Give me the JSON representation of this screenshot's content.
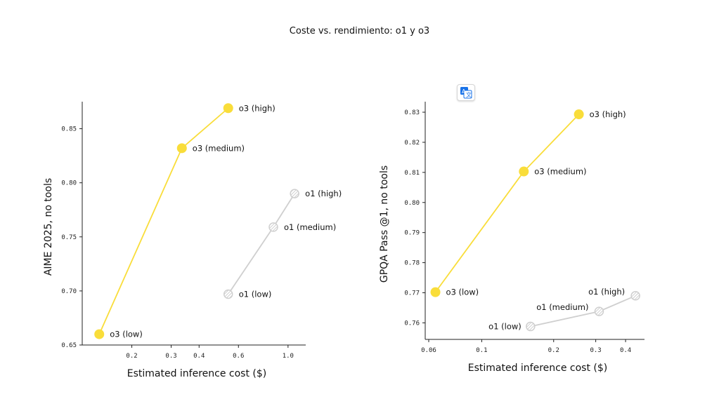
{
  "title": "Coste vs. rendimiento: o1 y o3",
  "colors": {
    "o3": "#f9dd3a",
    "o1": "#cfcfcf",
    "o1_hatch": "#bdbdbd"
  },
  "translate_icon": "translate-icon",
  "chart_data": [
    {
      "type": "scatter",
      "xlabel": "Estimated inference cost ($)",
      "ylabel": "AIME 2025, no tools",
      "xscale": "log",
      "xlim": [
        0.12,
        1.2
      ],
      "ylim": [
        0.65,
        0.875
      ],
      "xticks": [
        {
          "value": 0.2,
          "label": "0.2"
        },
        {
          "value": 0.3,
          "label": "0.3"
        },
        {
          "value": 0.4,
          "label": "0.4"
        },
        {
          "value": 0.6,
          "label": "0.6"
        },
        {
          "value": 1.0,
          "label": "1.0"
        }
      ],
      "yticks": [
        {
          "value": 0.65,
          "label": "0.65"
        },
        {
          "value": 0.7,
          "label": "0.70"
        },
        {
          "value": 0.75,
          "label": "0.75"
        },
        {
          "value": 0.8,
          "label": "0.80"
        },
        {
          "value": 0.85,
          "label": "0.85"
        }
      ],
      "grid": false,
      "series": [
        {
          "name": "o3",
          "style": "solid",
          "points": [
            {
              "x": 0.143,
              "y": 0.66,
              "label": "o3 (low)",
              "pos": "right"
            },
            {
              "x": 0.335,
              "y": 0.832,
              "label": "o3 (medium)",
              "pos": "right"
            },
            {
              "x": 0.54,
              "y": 0.869,
              "label": "o3 (high)",
              "pos": "right"
            }
          ]
        },
        {
          "name": "o1",
          "style": "hatched",
          "points": [
            {
              "x": 0.54,
              "y": 0.697,
              "label": "o1 (low)",
              "pos": "right"
            },
            {
              "x": 0.86,
              "y": 0.759,
              "label": "o1 (medium)",
              "pos": "right"
            },
            {
              "x": 1.07,
              "y": 0.79,
              "label": "o1 (high)",
              "pos": "right"
            }
          ]
        }
      ]
    },
    {
      "type": "scatter",
      "xlabel": "Estimated inference cost ($)",
      "ylabel": "GPQA Pass @1, no tools",
      "xscale": "log",
      "xlim": [
        0.058,
        0.48
      ],
      "ylim": [
        0.7545,
        0.8335
      ],
      "xticks": [
        {
          "value": 0.06,
          "label": "0.06"
        },
        {
          "value": 0.1,
          "label": "0.1"
        },
        {
          "value": 0.2,
          "label": "0.2"
        },
        {
          "value": 0.3,
          "label": "0.3"
        },
        {
          "value": 0.4,
          "label": "0.4"
        }
      ],
      "yticks": [
        {
          "value": 0.76,
          "label": "0.76"
        },
        {
          "value": 0.77,
          "label": "0.77"
        },
        {
          "value": 0.78,
          "label": "0.78"
        },
        {
          "value": 0.79,
          "label": "0.79"
        },
        {
          "value": 0.8,
          "label": "0.80"
        },
        {
          "value": 0.81,
          "label": "0.81"
        },
        {
          "value": 0.82,
          "label": "0.82"
        },
        {
          "value": 0.83,
          "label": "0.83"
        }
      ],
      "grid": false,
      "series": [
        {
          "name": "o3",
          "style": "solid",
          "points": [
            {
              "x": 0.064,
              "y": 0.7702,
              "label": "o3 (low)",
              "pos": "right"
            },
            {
              "x": 0.15,
              "y": 0.8103,
              "label": "o3 (medium)",
              "pos": "right"
            },
            {
              "x": 0.255,
              "y": 0.8293,
              "label": "o3 (high)",
              "pos": "right"
            }
          ]
        },
        {
          "name": "o1",
          "style": "hatched",
          "points": [
            {
              "x": 0.16,
              "y": 0.7588,
              "label": "o1 (low)",
              "pos": "left"
            },
            {
              "x": 0.31,
              "y": 0.7638,
              "label": "o1 (medium)",
              "pos": "above-left"
            },
            {
              "x": 0.44,
              "y": 0.769,
              "label": "o1 (high)",
              "pos": "above-left"
            }
          ]
        }
      ]
    }
  ]
}
